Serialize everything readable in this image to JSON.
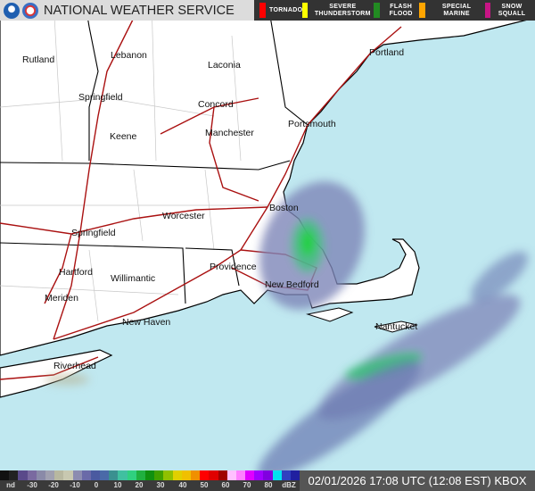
{
  "header": {
    "title": "NATIONAL WEATHER SERVICE",
    "legend": [
      {
        "label": "TORNADO",
        "color": "#ff0000"
      },
      {
        "label": "SEVERE THUNDERSTORM",
        "color": "#ffff00"
      },
      {
        "label": "FLASH FLOOD",
        "color": "#228b22"
      },
      {
        "label": "SPECIAL MARINE",
        "color": "#ffa500"
      },
      {
        "label": "SNOW SQUALL",
        "color": "#c71585"
      }
    ]
  },
  "cities": [
    {
      "name": "Rutland"
    },
    {
      "name": "Lebanon"
    },
    {
      "name": "Laconia"
    },
    {
      "name": "Springfield"
    },
    {
      "name": "Concord"
    },
    {
      "name": "Keene"
    },
    {
      "name": "Manchester"
    },
    {
      "name": "Portsmouth"
    },
    {
      "name": "Portland"
    },
    {
      "name": "Worcester"
    },
    {
      "name": "Boston"
    },
    {
      "name": "Springfield"
    },
    {
      "name": "Hartford"
    },
    {
      "name": "Providence"
    },
    {
      "name": "Willimantic"
    },
    {
      "name": "New Bedford"
    },
    {
      "name": "Meriden"
    },
    {
      "name": "New Haven"
    },
    {
      "name": "Nantucket"
    },
    {
      "name": "Riverhead"
    }
  ],
  "colors": {
    "ocean": "#c0e8f0",
    "land": "#ffffff",
    "roads": "#aa1111",
    "borders": "#000000"
  },
  "colorbar": {
    "colors": [
      "#111111",
      "#222222",
      "#5a4a8a",
      "#7a6aa0",
      "#8a8aa8",
      "#a0a0b0",
      "#b8b8a0",
      "#c8c8b0",
      "#8c8cb0",
      "#6a6aa8",
      "#4a5aa0",
      "#4a6aa8",
      "#3a9090",
      "#40c0a0",
      "#30d080",
      "#20b040",
      "#109010",
      "#40a000",
      "#90c000",
      "#e0d000",
      "#f0c000",
      "#f09000",
      "#ff0000",
      "#e00000",
      "#a00000",
      "#ffc0ff",
      "#ff80ff",
      "#e000ff",
      "#a000ff",
      "#8000e0",
      "#00e0f0",
      "#3040c0",
      "#2020a0"
    ],
    "labels": [
      "nd",
      "-30",
      "-20",
      "-10",
      "0",
      "10",
      "20",
      "30",
      "40",
      "50",
      "60",
      "70",
      "80",
      "dBZ"
    ]
  },
  "timestamp": "02/01/2026 17:08 UTC (12:08 EST) KBOX"
}
